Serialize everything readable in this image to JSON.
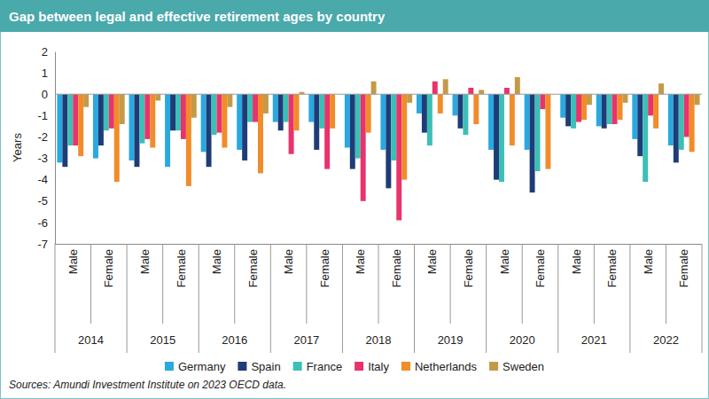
{
  "chart_data": {
    "type": "bar",
    "title": "Gap between legal and effective retirement ages by country",
    "y_label": "Years",
    "source": "Sources: Amundi Investment Institute on 2023 OECD data.",
    "categories": [
      "Male",
      "Female",
      "Male",
      "Female",
      "Male",
      "Female",
      "Male",
      "Female",
      "Male",
      "Female",
      "Male",
      "Female",
      "Male",
      "Female",
      "Male",
      "Female",
      "Male",
      "Female"
    ],
    "group_labels": [
      "2014",
      "2015",
      "2016",
      "2017",
      "2018",
      "2019",
      "2020",
      "2021",
      "2022"
    ],
    "series": [
      {
        "name": "Germany",
        "color": "#29a9df",
        "values": [
          -3.2,
          -3.0,
          -3.1,
          -3.4,
          -2.7,
          -2.6,
          -1.3,
          -1.3,
          -2.5,
          -2.6,
          -0.9,
          -1.0,
          -2.6,
          -2.6,
          -1.1,
          -1.5,
          -2.1,
          -2.4
        ]
      },
      {
        "name": "Spain",
        "color": "#1f3c78",
        "values": [
          -3.4,
          -2.4,
          -3.4,
          -1.7,
          -3.4,
          -3.1,
          -1.7,
          -2.6,
          -3.5,
          -4.4,
          -1.8,
          -1.6,
          -4.0,
          -4.6,
          -1.5,
          -1.6,
          -2.9,
          -3.2
        ]
      },
      {
        "name": "France",
        "color": "#3cbfb6",
        "values": [
          -2.4,
          -1.7,
          -2.3,
          -1.7,
          -1.9,
          -1.3,
          -1.3,
          -1.6,
          -3.0,
          -3.1,
          -2.4,
          -1.9,
          -4.1,
          -3.6,
          -1.6,
          -1.4,
          -4.1,
          -2.6
        ]
      },
      {
        "name": "Italy",
        "color": "#e8336b",
        "values": [
          -2.4,
          -1.6,
          -2.1,
          -2.1,
          -1.8,
          -1.3,
          -2.8,
          -3.5,
          -5.0,
          -5.9,
          0.6,
          0.3,
          0.3,
          -0.7,
          -1.3,
          -1.4,
          -1.0,
          -2.0
        ]
      },
      {
        "name": "Netherlands",
        "color": "#f28b2a",
        "values": [
          -2.9,
          -4.1,
          -2.5,
          -4.3,
          -2.5,
          -3.7,
          -1.7,
          -1.6,
          -1.8,
          -4.0,
          -0.9,
          -1.4,
          -2.4,
          -3.5,
          -1.2,
          -1.2,
          -1.6,
          -2.7
        ]
      },
      {
        "name": "Sweden",
        "color": "#c49a47",
        "values": [
          -0.6,
          -1.4,
          -0.3,
          -1.1,
          -0.6,
          -0.9,
          0.1,
          0.0,
          0.6,
          -0.4,
          0.7,
          0.2,
          0.8,
          0.0,
          -0.5,
          -0.4,
          0.5,
          -0.5
        ]
      }
    ],
    "ylim": [
      -7,
      2
    ],
    "yticks": [
      -7,
      -6,
      -5,
      -4,
      -3,
      -2,
      -1,
      0,
      1,
      2
    ],
    "grid": false,
    "legend": "bottom"
  }
}
